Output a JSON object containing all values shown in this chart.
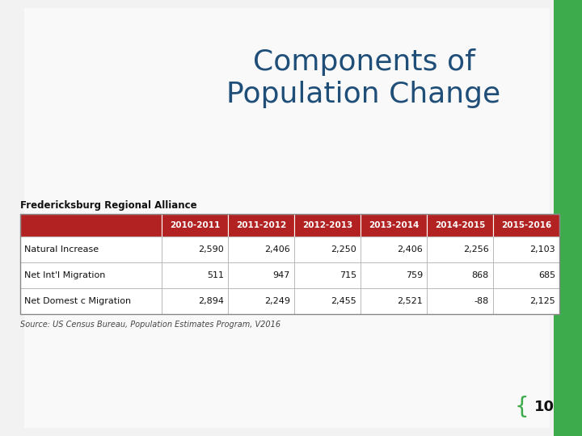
{
  "title": "Components of\nPopulation Change",
  "title_color": "#1F4E79",
  "background_color": "#F0F0F0",
  "header_label": "Fredericksburg Regional Alliance",
  "columns": [
    "",
    "2010-2011",
    "2011-2012",
    "2012-2013",
    "2013-2014",
    "2014-2015",
    "2015-2016"
  ],
  "rows": [
    [
      "Natural Increase",
      "2,590",
      "2,406",
      "2,250",
      "2,406",
      "2,256",
      "2,103"
    ],
    [
      "Net Int'l Migration",
      "511",
      "947",
      "715",
      "759",
      "868",
      "685"
    ],
    [
      "Net Domest c Migration",
      "2,894",
      "2,249",
      "2,455",
      "2,521",
      "-88",
      "2,125"
    ]
  ],
  "source_text": "Source: US Census Bureau, Population Estimates Program, V2016",
  "header_bg": "#B22222",
  "header_text_color": "#FFFFFF",
  "cell_border_color": "#AAAAAA",
  "page_number": "10",
  "green_bar_color": "#3DAA4C",
  "table_border_color": "#888888"
}
